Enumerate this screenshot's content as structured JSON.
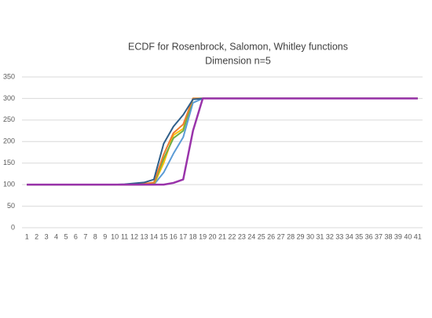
{
  "chart_data": {
    "type": "line",
    "title": [
      "ECDF for Rosenbrock, Salomon, Whitley functions",
      "Dimension n=5"
    ],
    "categories": [
      1,
      2,
      3,
      4,
      5,
      6,
      7,
      8,
      9,
      10,
      11,
      12,
      13,
      14,
      15,
      16,
      17,
      18,
      19,
      20,
      21,
      22,
      23,
      24,
      25,
      26,
      27,
      28,
      29,
      30,
      31,
      32,
      33,
      34,
      35,
      36,
      37,
      38,
      39,
      40,
      41
    ],
    "series": [
      {
        "color": "#5b9bd5",
        "values": [
          100,
          100,
          100,
          100,
          100,
          100,
          100,
          100,
          100,
          100,
          100,
          100,
          100,
          100,
          128,
          172,
          210,
          290,
          300,
          300,
          300,
          300,
          300,
          300,
          300,
          300,
          300,
          300,
          300,
          300,
          300,
          300,
          300,
          300,
          300,
          300,
          300,
          300,
          300,
          300,
          300
        ]
      },
      {
        "color": "#ffc000",
        "values": [
          100,
          100,
          100,
          100,
          100,
          100,
          100,
          100,
          100,
          100,
          100,
          100,
          100,
          100,
          150,
          215,
          230,
          300,
          300,
          300,
          300,
          300,
          300,
          300,
          300,
          300,
          300,
          300,
          300,
          300,
          300,
          300,
          300,
          300,
          300,
          300,
          300,
          300,
          300,
          300,
          300
        ]
      },
      {
        "color": "#70ad47",
        "values": [
          100,
          100,
          100,
          100,
          100,
          100,
          100,
          100,
          100,
          100,
          100,
          100,
          100,
          102,
          160,
          208,
          225,
          300,
          300,
          300,
          300,
          300,
          300,
          300,
          300,
          300,
          300,
          300,
          300,
          300,
          300,
          300,
          300,
          300,
          300,
          300,
          300,
          300,
          300,
          300,
          300
        ]
      },
      {
        "color": "#ed7d31",
        "values": [
          100,
          100,
          100,
          100,
          100,
          100,
          100,
          100,
          100,
          100,
          100,
          100,
          102,
          105,
          170,
          220,
          240,
          300,
          300,
          300,
          300,
          300,
          300,
          300,
          300,
          300,
          300,
          300,
          300,
          300,
          300,
          300,
          300,
          300,
          300,
          300,
          300,
          300,
          300,
          300,
          300
        ]
      },
      {
        "color": "#2f5f8a",
        "values": [
          100,
          100,
          100,
          100,
          100,
          100,
          100,
          100,
          100,
          100,
          101,
          103,
          105,
          112,
          195,
          235,
          262,
          298,
          300,
          300,
          300,
          300,
          300,
          300,
          300,
          300,
          300,
          300,
          300,
          300,
          300,
          300,
          300,
          300,
          300,
          300,
          300,
          300,
          300,
          300,
          300
        ]
      },
      {
        "color": "#9933aa",
        "values": [
          100,
          100,
          100,
          100,
          100,
          100,
          100,
          100,
          100,
          100,
          100,
          100,
          100,
          100,
          100,
          104,
          112,
          225,
          300,
          300,
          300,
          300,
          300,
          300,
          300,
          300,
          300,
          300,
          300,
          300,
          300,
          300,
          300,
          300,
          300,
          300,
          300,
          300,
          300,
          300,
          300
        ]
      }
    ],
    "ylim": [
      0,
      350
    ],
    "yticks": [
      0,
      50,
      100,
      150,
      200,
      250,
      300,
      350
    ],
    "grid": true
  }
}
